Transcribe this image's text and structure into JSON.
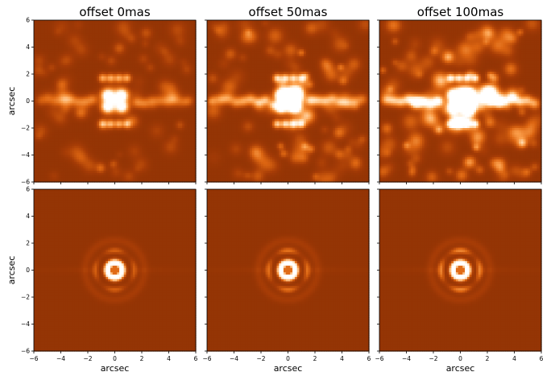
{
  "chart_data": [
    {
      "type": "heatmap",
      "row": 0,
      "col": 0,
      "title": "offset 0mas",
      "xlabel": "",
      "ylabel": "arcsec",
      "xlim": [
        -6,
        6
      ],
      "ylim": [
        -6,
        6
      ],
      "xticks": [
        "−6",
        "−4",
        "−2",
        "0",
        "2",
        "4",
        "6"
      ],
      "yticks": [
        "−6",
        "−4",
        "−2",
        "0",
        "2",
        "4",
        "6"
      ],
      "show_xticklabels": false,
      "show_yticklabels": true,
      "offset_mas": 0,
      "pattern": "speckle",
      "colormap": [
        "#7a2a04",
        "#a63c06",
        "#dd6612",
        "#fb9e4a",
        "#ffe0b8",
        "#ffffff"
      ]
    },
    {
      "type": "heatmap",
      "row": 0,
      "col": 1,
      "title": "offset 50mas",
      "xlabel": "",
      "ylabel": "",
      "xlim": [
        -6,
        6
      ],
      "ylim": [
        -6,
        6
      ],
      "xticks": [
        "−6",
        "−4",
        "−2",
        "0",
        "2",
        "4",
        "6"
      ],
      "yticks": [
        "−6",
        "−4",
        "−2",
        "0",
        "2",
        "4",
        "6"
      ],
      "show_xticklabels": false,
      "show_yticklabels": false,
      "offset_mas": 50,
      "pattern": "speckle",
      "colormap": [
        "#7a2a04",
        "#a63c06",
        "#dd6612",
        "#fb9e4a",
        "#ffe0b8",
        "#ffffff"
      ]
    },
    {
      "type": "heatmap",
      "row": 0,
      "col": 2,
      "title": "offset 100mas",
      "xlabel": "",
      "ylabel": "",
      "xlim": [
        -6,
        6
      ],
      "ylim": [
        -6,
        6
      ],
      "xticks": [
        "−6",
        "−4",
        "−2",
        "0",
        "2",
        "4",
        "6"
      ],
      "yticks": [
        "−6",
        "−4",
        "−2",
        "0",
        "2",
        "4",
        "6"
      ],
      "show_xticklabels": false,
      "show_yticklabels": false,
      "offset_mas": 100,
      "pattern": "speckle",
      "colormap": [
        "#7a2a04",
        "#a63c06",
        "#dd6612",
        "#fb9e4a",
        "#ffe0b8",
        "#ffffff"
      ]
    },
    {
      "type": "heatmap",
      "row": 1,
      "col": 0,
      "title": "",
      "xlabel": "arcsec",
      "ylabel": "arcsec",
      "xlim": [
        -6,
        6
      ],
      "ylim": [
        -6,
        6
      ],
      "xticks": [
        "−6",
        "−4",
        "−2",
        "0",
        "2",
        "4",
        "6"
      ],
      "yticks": [
        "−6",
        "−4",
        "−2",
        "0",
        "2",
        "4",
        "6"
      ],
      "show_xticklabels": true,
      "show_yticklabels": true,
      "offset_mas": 0,
      "pattern": "ring",
      "colormap": [
        "#7a2a04",
        "#a63c06",
        "#dd6612",
        "#fb9e4a",
        "#ffe0b8",
        "#ffffff"
      ]
    },
    {
      "type": "heatmap",
      "row": 1,
      "col": 1,
      "title": "",
      "xlabel": "arcsec",
      "ylabel": "",
      "xlim": [
        -6,
        6
      ],
      "ylim": [
        -6,
        6
      ],
      "xticks": [
        "−6",
        "−4",
        "−2",
        "0",
        "2",
        "4",
        "6"
      ],
      "yticks": [
        "−6",
        "−4",
        "−2",
        "0",
        "2",
        "4",
        "6"
      ],
      "show_xticklabels": true,
      "show_yticklabels": false,
      "offset_mas": 50,
      "pattern": "ring",
      "colormap": [
        "#7a2a04",
        "#a63c06",
        "#dd6612",
        "#fb9e4a",
        "#ffe0b8",
        "#ffffff"
      ]
    },
    {
      "type": "heatmap",
      "row": 1,
      "col": 2,
      "title": "",
      "xlabel": "arcsec",
      "ylabel": "",
      "xlim": [
        -6,
        6
      ],
      "ylim": [
        -6,
        6
      ],
      "xticks": [
        "−6",
        "−4",
        "−2",
        "0",
        "2",
        "4",
        "6"
      ],
      "yticks": [
        "−6",
        "−4",
        "−2",
        "0",
        "2",
        "4",
        "6"
      ],
      "show_xticklabels": true,
      "show_yticklabels": false,
      "offset_mas": 100,
      "pattern": "ring",
      "colormap": [
        "#7a2a04",
        "#a63c06",
        "#dd6612",
        "#fb9e4a",
        "#ffe0b8",
        "#ffffff"
      ]
    }
  ]
}
